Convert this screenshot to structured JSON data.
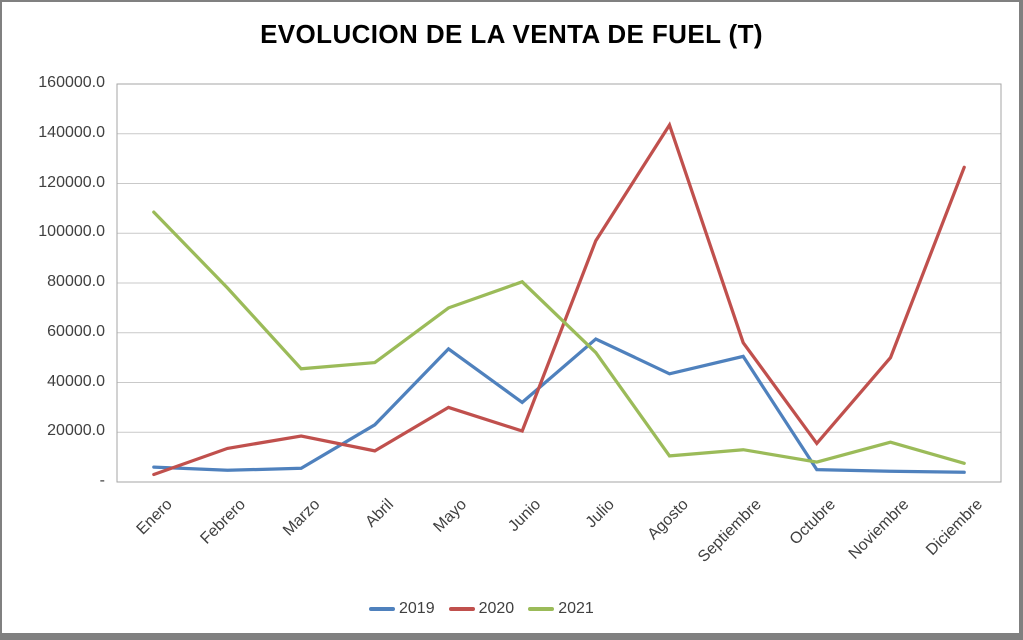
{
  "chart_data": {
    "type": "line",
    "title": "EVOLUCION DE LA VENTA DE FUEL (T)",
    "categories": [
      "Enero",
      "Febrero",
      "Marzo",
      "Abril",
      "Mayo",
      "Junio",
      "Julio",
      "Agosto",
      "Septiembre",
      "Octubre",
      "Noviembre",
      "Diciembre"
    ],
    "series": [
      {
        "name": "2019",
        "color": "#4F81BD",
        "values": [
          6000,
          4700,
          5500,
          23000,
          53500,
          32000,
          57500,
          43500,
          50500,
          5000,
          4300,
          3900
        ]
      },
      {
        "name": "2020",
        "color": "#C0504D",
        "values": [
          3000,
          13500,
          18500,
          12500,
          30000,
          20500,
          97000,
          143500,
          56000,
          15500,
          50000,
          126500
        ]
      },
      {
        "name": "2021",
        "color": "#9BBB59",
        "values": [
          108500,
          78000,
          45500,
          48000,
          70000,
          80500,
          52000,
          10500,
          13000,
          8000,
          16000,
          7500
        ]
      }
    ],
    "y_axis": {
      "min": 0,
      "max": 160000,
      "step": 20000,
      "tick_labels": [
        "-",
        "20000.0",
        "40000.0",
        "60000.0",
        "80000.0",
        "100000.0",
        "120000.0",
        "140000.0",
        "160000.0"
      ]
    },
    "xlabel": "",
    "ylabel": "",
    "grid": true,
    "legend_position": "bottom"
  },
  "colors": {
    "background": "#FFFFFF",
    "frame": "#808080",
    "gridline": "#C9C9C9",
    "axis": "#A6A6A6",
    "title_text": "#000000",
    "label_text": "#404040"
  }
}
